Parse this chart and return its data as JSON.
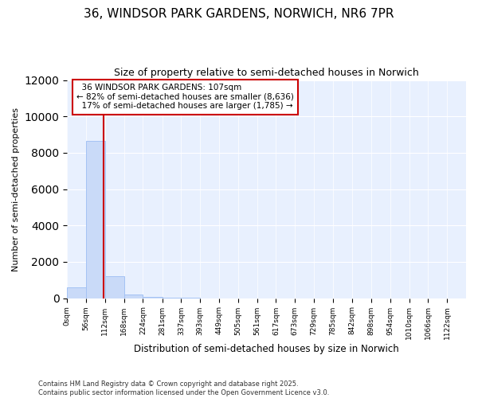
{
  "title": "36, WINDSOR PARK GARDENS, NORWICH, NR6 7PR",
  "subtitle": "Size of property relative to semi-detached houses in Norwich",
  "xlabel": "Distribution of semi-detached houses by size in Norwich",
  "ylabel": "Number of semi-detached properties",
  "footnote": "Contains HM Land Registry data © Crown copyright and database right 2025.\nContains public sector information licensed under the Open Government Licence v3.0.",
  "bin_edges": [
    0,
    56,
    112,
    168,
    224,
    281,
    337,
    393,
    449,
    505,
    561,
    617,
    673,
    729,
    785,
    842,
    898,
    954,
    1010,
    1066,
    1122
  ],
  "bin_counts": [
    600,
    8636,
    1200,
    200,
    50,
    10,
    5,
    3,
    2,
    1,
    1,
    0,
    0,
    0,
    0,
    0,
    0,
    0,
    0,
    0
  ],
  "property_size": 107,
  "property_label": "36 WINDSOR PARK GARDENS: 107sqm",
  "smaller_pct": 82,
  "smaller_count": "8,636",
  "larger_pct": 17,
  "larger_count": "1,785",
  "bar_color": "#c9daf8",
  "bar_edge_color": "#a4c2f4",
  "line_color": "#cc0000",
  "annotation_box_color": "#cc0000",
  "background_color": "#e8f0fe",
  "ylim": [
    0,
    12000
  ],
  "yticks": [
    0,
    2000,
    4000,
    6000,
    8000,
    10000,
    12000
  ]
}
